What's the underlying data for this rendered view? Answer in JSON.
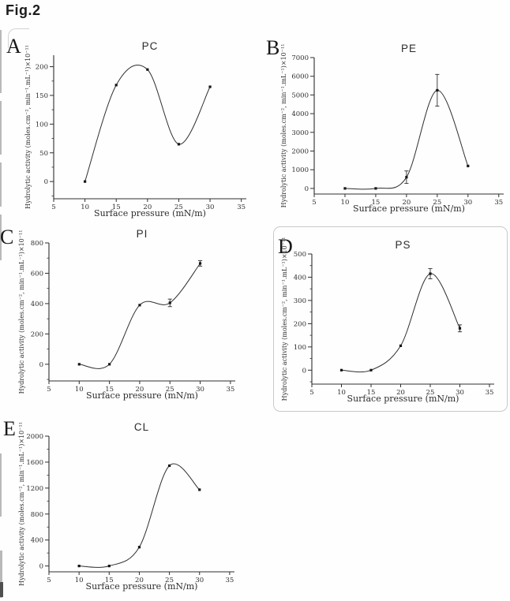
{
  "figure_label": "Fig.2",
  "colors": {
    "ink": "#2e2e2e",
    "panel_border": "#c9c9c9",
    "background": "#fefefe"
  },
  "chart_data": [
    {
      "type": "line",
      "panel_letter": "A",
      "title": "PC",
      "xlabel": "Surface pressure (mN/m)",
      "ylabel": "Hydrolytic activity (moles.cm⁻², min⁻¹.mL⁻¹)×10⁻¹¹",
      "x": [
        10,
        15,
        20,
        25,
        30
      ],
      "y": [
        0,
        168,
        195,
        65,
        165
      ],
      "yerr": [
        0,
        0,
        0,
        0,
        0
      ],
      "xlim": [
        5,
        35.8
      ],
      "xticks": [
        5,
        10,
        15,
        20,
        25,
        30,
        35
      ],
      "ylim": [
        -30,
        220
      ],
      "yticks": [
        0,
        50,
        100,
        150,
        200
      ],
      "yminor_step": 25,
      "grid": false,
      "smooth": true,
      "marker": "square"
    },
    {
      "type": "line",
      "panel_letter": "B",
      "title": "PE",
      "xlabel": "Surface pressure (mN/m)",
      "ylabel": "Hydrolytic activity (moles.cm⁻², min⁻¹.mL⁻¹)×10⁻¹¹",
      "x": [
        10,
        15,
        20,
        25,
        30
      ],
      "y": [
        0,
        0,
        600,
        5250,
        1200
      ],
      "yerr": [
        0,
        0,
        335,
        850,
        0
      ],
      "xlim": [
        5,
        35.8
      ],
      "xticks": [
        5,
        10,
        15,
        20,
        25,
        30,
        35
      ],
      "ylim": [
        -300,
        7000
      ],
      "yticks": [
        0,
        1000,
        2000,
        3000,
        4000,
        5000,
        6000,
        7000
      ],
      "yminor_step": 0,
      "grid": false,
      "smooth": true,
      "marker": "square"
    },
    {
      "type": "line",
      "panel_letter": "C",
      "title": "PI",
      "xlabel": "Surface pressure (mN/m)",
      "ylabel": "Hydrolytic activity (moles.cm⁻², min⁻¹.mL⁻¹)×10⁻¹¹",
      "x": [
        10,
        15,
        20,
        25,
        30
      ],
      "y": [
        0,
        0,
        390,
        405,
        665
      ],
      "yerr": [
        0,
        0,
        0,
        25,
        18
      ],
      "xlim": [
        5,
        35.8
      ],
      "xticks": [
        5,
        10,
        15,
        20,
        25,
        30,
        35
      ],
      "ylim": [
        -110,
        800
      ],
      "yticks": [
        0,
        200,
        400,
        600,
        800
      ],
      "yminor_step": 100,
      "grid": false,
      "smooth": true,
      "marker": "square"
    },
    {
      "type": "line",
      "panel_letter": "D",
      "title": "PS",
      "xlabel": "Surface pressure (mN/m)",
      "ylabel": "Hydrolytic activity (moles.cm⁻², min⁻¹.mL⁻¹)×10⁻¹¹",
      "x": [
        10,
        15,
        20,
        25,
        30
      ],
      "y": [
        0,
        0,
        105,
        415,
        180
      ],
      "yerr": [
        0,
        0,
        0,
        22,
        15
      ],
      "xlim": [
        5,
        35.8
      ],
      "xticks": [
        5,
        10,
        15,
        20,
        25,
        30,
        35
      ],
      "ylim": [
        -60,
        500
      ],
      "yticks": [
        0,
        100,
        200,
        300,
        400,
        500
      ],
      "yminor_step": 50,
      "grid": false,
      "smooth": true,
      "marker": "square"
    },
    {
      "type": "line",
      "panel_letter": "E",
      "title": "CL",
      "xlabel": "Surface pressure (mN/m)",
      "ylabel": "Hydrolytic activity (moles.cm⁻², min⁻¹.mL⁻¹)×10⁻¹¹",
      "x": [
        10,
        15,
        20,
        25,
        30
      ],
      "y": [
        0,
        0,
        290,
        1545,
        1175
      ],
      "yerr": [
        0,
        0,
        0,
        0,
        0
      ],
      "xlim": [
        5,
        35.8
      ],
      "xticks": [
        5,
        10,
        15,
        20,
        25,
        30,
        35
      ],
      "ylim": [
        -90,
        2000
      ],
      "yticks": [
        0,
        400,
        800,
        1200,
        1600,
        2000
      ],
      "yminor_step": 200,
      "grid": false,
      "smooth": true,
      "marker": "square"
    }
  ]
}
